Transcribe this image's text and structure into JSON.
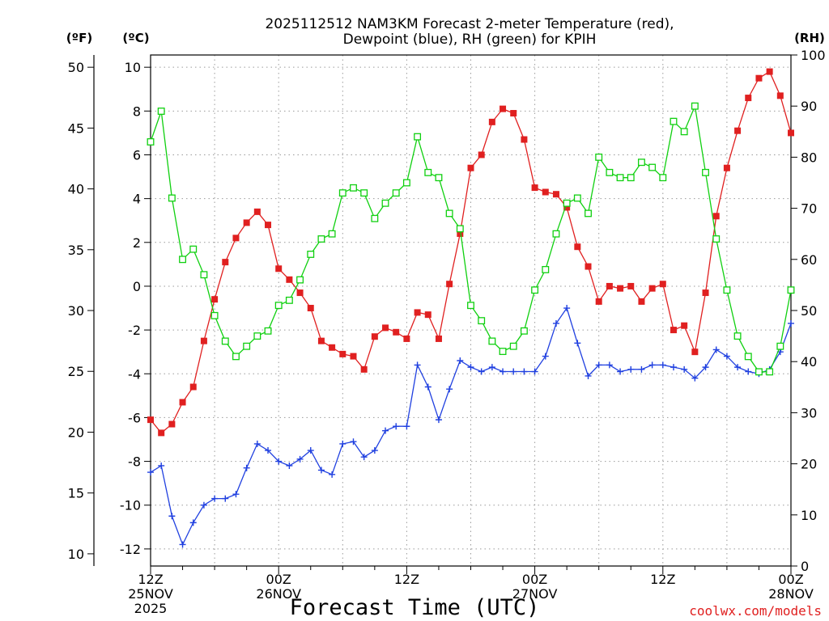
{
  "chart_data": {
    "type": "line",
    "title_line1": "2025112512 NAM3KM Forecast 2-meter Temperature (red),",
    "title_line2": "Dewpoint (blue), RH (green) for KPIH",
    "units": {
      "fahrenheit": "(ºF)",
      "celsius": "(ºC)",
      "rh": "(RH)"
    },
    "xlabel": "Forecast Time (UTC)",
    "credit": "coolwx.com/models",
    "x_range_hours": [
      0,
      60
    ],
    "celsius_range": [
      -12.78,
      10.56
    ],
    "rh_range": [
      0,
      100
    ],
    "celsius_ticks": [
      "10",
      "8",
      "6",
      "4",
      "2",
      "0",
      "-2",
      "-4",
      "-6",
      "-8",
      "-10",
      "-12"
    ],
    "fahrenheit_ticks": [
      "50",
      "45",
      "40",
      "35",
      "30",
      "25",
      "20",
      "15",
      "10"
    ],
    "rh_ticks": [
      "100",
      "90",
      "80",
      "70",
      "60",
      "50",
      "40",
      "30",
      "20",
      "10",
      "0"
    ],
    "x_ticks": [
      {
        "hour": 0,
        "line1": "12Z",
        "line2": "25NOV",
        "line3": "2025"
      },
      {
        "hour": 12,
        "line1": "00Z",
        "line2": "26NOV",
        "line3": ""
      },
      {
        "hour": 24,
        "line1": "12Z",
        "line2": "",
        "line3": ""
      },
      {
        "hour": 36,
        "line1": "00Z",
        "line2": "27NOV",
        "line3": ""
      },
      {
        "hour": 48,
        "line1": "12Z",
        "line2": "",
        "line3": ""
      },
      {
        "hour": 60,
        "line1": "00Z",
        "line2": "28NOV",
        "line3": ""
      }
    ],
    "hours": [
      0,
      1,
      2,
      3,
      4,
      5,
      6,
      7,
      8,
      9,
      10,
      11,
      12,
      13,
      14,
      15,
      16,
      17,
      18,
      19,
      20,
      21,
      22,
      23,
      24,
      25,
      26,
      27,
      28,
      29,
      30,
      31,
      32,
      33,
      34,
      35,
      36,
      37,
      38,
      39,
      40,
      41,
      42,
      43,
      44,
      45,
      46,
      47,
      48,
      49,
      50,
      51,
      52,
      53,
      54,
      55,
      56,
      57,
      58,
      59,
      60
    ],
    "series": [
      {
        "name": "2-meter Temperature (ºC)",
        "color": "#e02020",
        "marker": "filled-square",
        "axis": "celsius",
        "values": [
          -6.1,
          -6.7,
          -6.3,
          -5.3,
          -4.6,
          -2.5,
          -0.6,
          1.1,
          2.2,
          2.9,
          3.4,
          2.8,
          0.8,
          0.3,
          -0.3,
          -1.0,
          -2.5,
          -2.8,
          -3.1,
          -3.2,
          -3.8,
          -2.3,
          -1.9,
          -2.1,
          -2.4,
          -1.2,
          -1.3,
          -2.4,
          0.1,
          2.4,
          5.4,
          6.0,
          7.5,
          8.1,
          7.9,
          6.7,
          4.5,
          4.3,
          4.2,
          3.6,
          1.8,
          0.9,
          -0.7,
          0.0,
          -0.1,
          0.0,
          -0.7,
          -0.1,
          0.1,
          -2.0,
          -1.8,
          -3.0,
          -0.3,
          3.2,
          5.4,
          7.1,
          8.6,
          9.5,
          9.8,
          8.7,
          7.0
        ]
      },
      {
        "name": "Dewpoint (ºC)",
        "color": "#2040e0",
        "marker": "plus",
        "axis": "celsius",
        "values": [
          -8.5,
          -8.2,
          -10.5,
          -11.8,
          -10.8,
          -10.0,
          -9.7,
          -9.7,
          -9.5,
          -8.3,
          -7.2,
          -7.5,
          -8.0,
          -8.2,
          -7.9,
          -7.5,
          -8.4,
          -8.6,
          -7.2,
          -7.1,
          -7.8,
          -7.5,
          -6.6,
          -6.4,
          -6.4,
          -3.6,
          -4.6,
          -6.1,
          -4.7,
          -3.4,
          -3.7,
          -3.9,
          -3.7,
          -3.9,
          -3.9,
          -3.9,
          -3.9,
          -3.2,
          -1.7,
          -1.0,
          -2.6,
          -4.1,
          -3.6,
          -3.6,
          -3.9,
          -3.8,
          -3.8,
          -3.6,
          -3.6,
          -3.7,
          -3.8,
          -4.2,
          -3.7,
          -2.9,
          -3.2,
          -3.7,
          -3.9,
          -4.0,
          -3.8,
          -3.0,
          -1.7
        ]
      },
      {
        "name": "Relative Humidity (%)",
        "color": "#10d010",
        "marker": "open-square",
        "axis": "rh",
        "values": [
          83,
          89,
          72,
          60,
          62,
          57,
          49,
          44,
          41,
          43,
          45,
          46,
          51,
          52,
          56,
          61,
          64,
          65,
          73,
          74,
          73,
          68,
          71,
          73,
          75,
          84,
          77,
          76,
          69,
          66,
          51,
          48,
          44,
          42,
          43,
          46,
          54,
          58,
          65,
          71,
          72,
          69,
          80,
          77,
          76,
          76,
          79,
          78,
          76,
          87,
          85,
          90,
          77,
          64,
          54,
          45,
          41,
          38,
          38,
          43,
          54
        ]
      }
    ]
  }
}
